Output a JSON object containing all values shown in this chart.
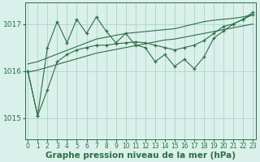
{
  "hours": [
    0,
    1,
    2,
    3,
    4,
    5,
    6,
    7,
    8,
    9,
    10,
    11,
    12,
    13,
    14,
    15,
    16,
    17,
    18,
    19,
    20,
    21,
    22,
    23
  ],
  "pressure_jagged": [
    1016.0,
    1015.05,
    1016.5,
    1017.05,
    1016.6,
    1017.1,
    1016.8,
    1017.15,
    1016.85,
    1016.6,
    1016.8,
    1016.55,
    1016.5,
    1016.2,
    1016.35,
    1016.1,
    1016.25,
    1016.05,
    1016.3,
    1016.7,
    1016.85,
    1017.0,
    1017.1,
    1017.25
  ],
  "pressure_smooth": [
    1016.0,
    1015.05,
    1015.6,
    1016.2,
    1016.35,
    1016.45,
    1016.5,
    1016.55,
    1016.55,
    1016.58,
    1016.6,
    1016.62,
    1016.6,
    1016.55,
    1016.5,
    1016.45,
    1016.5,
    1016.55,
    1016.65,
    1016.8,
    1016.95,
    1017.0,
    1017.1,
    1017.2
  ],
  "trend_upper": [
    1016.15,
    1016.2,
    1016.28,
    1016.36,
    1016.44,
    1016.52,
    1016.6,
    1016.68,
    1016.72,
    1016.76,
    1016.8,
    1016.82,
    1016.84,
    1016.86,
    1016.88,
    1016.9,
    1016.95,
    1017.0,
    1017.05,
    1017.08,
    1017.1,
    1017.12,
    1017.15,
    1017.2
  ],
  "trend_lower": [
    1015.98,
    1016.02,
    1016.08,
    1016.14,
    1016.2,
    1016.26,
    1016.32,
    1016.38,
    1016.42,
    1016.46,
    1016.5,
    1016.54,
    1016.58,
    1016.62,
    1016.66,
    1016.68,
    1016.72,
    1016.76,
    1016.8,
    1016.84,
    1016.88,
    1016.92,
    1016.96,
    1017.0
  ],
  "bg_color": "#daf0ea",
  "grid_color": "#a8d5c8",
  "line_color": "#2d6e45",
  "ylabel_values": [
    1015,
    1016,
    1017
  ],
  "ylim": [
    1014.55,
    1017.45
  ],
  "xlim": [
    -0.3,
    23.3
  ],
  "xlabel": "Graphe pression niveau de la mer (hPa)",
  "xlabel_fontsize": 7.5,
  "ytick_fontsize": 6.5,
  "xtick_fontsize": 5.5
}
